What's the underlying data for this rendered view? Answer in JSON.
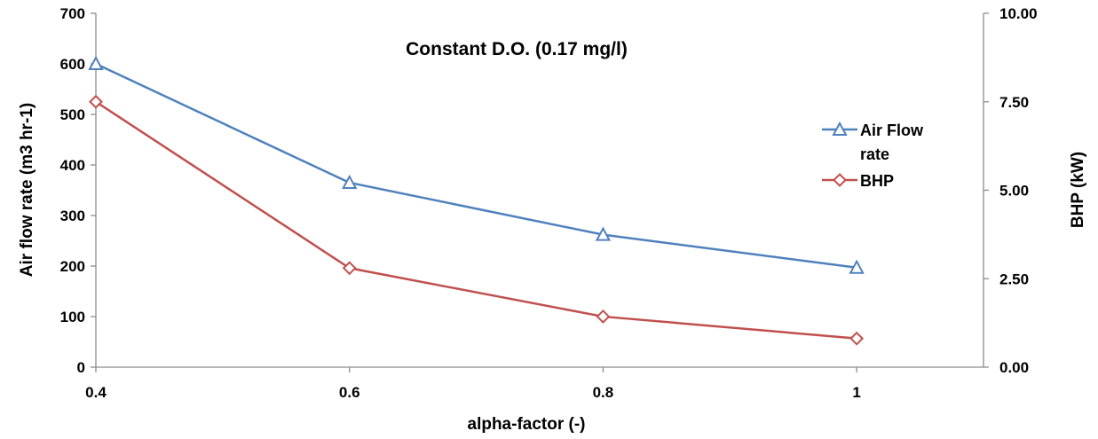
{
  "chart_data": {
    "type": "line",
    "title": "Constant D.O. (0.17 mg/l)",
    "xlabel": "alpha-factor (-)",
    "ylabel": "Air flow rate (m3 hr-1)",
    "y2label": "BHP (kW)",
    "x": [
      0.4,
      0.6,
      0.8,
      1
    ],
    "xlim": [
      0.4,
      1.1
    ],
    "ylim": [
      0,
      700
    ],
    "y2lim": [
      0,
      10
    ],
    "x_ticks": [
      "0.4",
      "0.6",
      "0.8",
      "1"
    ],
    "y_ticks": [
      "0",
      "100",
      "200",
      "300",
      "400",
      "500",
      "600",
      "700"
    ],
    "y2_ticks": [
      "0.00",
      "2.50",
      "5.00",
      "7.50",
      "10.00"
    ],
    "grid": false,
    "legend_position": "right",
    "series": [
      {
        "name": "Air Flow rate",
        "legend_lines": [
          "Air Flow",
          "rate"
        ],
        "axis": "left",
        "marker": "triangle",
        "color": "#4F81BD",
        "values": [
          600,
          365,
          262,
          197
        ]
      },
      {
        "name": "BHP",
        "legend_lines": [
          "BHP"
        ],
        "axis": "right",
        "marker": "diamond",
        "color": "#C0504D",
        "values": [
          7.5,
          2.8,
          1.43,
          0.81
        ]
      }
    ]
  }
}
